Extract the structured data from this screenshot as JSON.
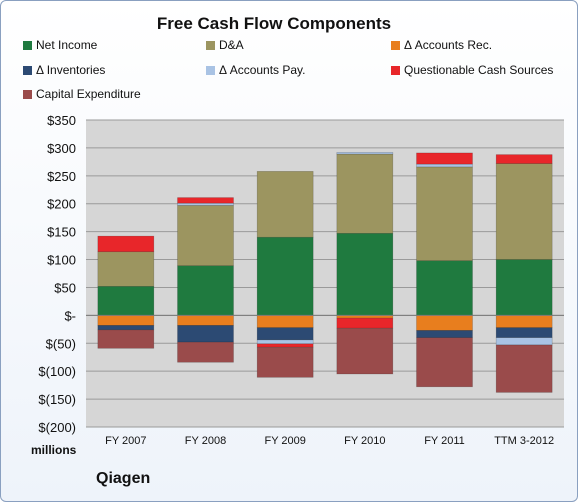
{
  "chart_data": {
    "type": "bar",
    "stacked": true,
    "title": "Free Cash Flow Components",
    "units_label": "millions",
    "company_label": "Qiagen",
    "categories": [
      "FY 2007",
      "FY 2008",
      "FY 2009",
      "FY 2010",
      "FY 2011",
      "TTM 3-2012"
    ],
    "ylim": [
      -200,
      350
    ],
    "yticks": [
      350,
      300,
      250,
      200,
      150,
      100,
      50,
      0,
      -50,
      -100,
      -150,
      -200
    ],
    "ytick_labels": [
      "$350",
      "$300",
      "$250",
      "$200",
      "$150",
      "$100",
      "$50",
      "$-",
      "$(50)",
      "$(100)",
      "$(150)",
      "$(200)"
    ],
    "grid": true,
    "legend_position": "top",
    "series": [
      {
        "name": "Net Income",
        "color": "#1f7a3f",
        "values": [
          52,
          89,
          140,
          147,
          98,
          100
        ]
      },
      {
        "name": "D&A",
        "color": "#9c9560",
        "values": [
          62,
          108,
          118,
          142,
          168,
          172
        ]
      },
      {
        "name": "Δ Accounts Rec.",
        "color": "#e87e1e",
        "values": [
          -18,
          -18,
          -22,
          -5,
          -27,
          -22
        ]
      },
      {
        "name": "Δ Inventories",
        "color": "#2c4a73",
        "values": [
          -8,
          -30,
          -22,
          0,
          -13,
          -18
        ]
      },
      {
        "name": "Δ Accounts Pay.",
        "color": "#a9c3e4",
        "values": [
          0,
          4,
          -7,
          3,
          5,
          -13
        ]
      },
      {
        "name": "Questionable Cash Sources",
        "color": "#e8262a",
        "values": [
          28,
          10,
          -6,
          -18,
          20,
          16
        ]
      },
      {
        "name": "Capital Expenditure",
        "color": "#9a4b4b",
        "values": [
          -33,
          -36,
          -54,
          -82,
          -88,
          -85
        ]
      }
    ]
  }
}
